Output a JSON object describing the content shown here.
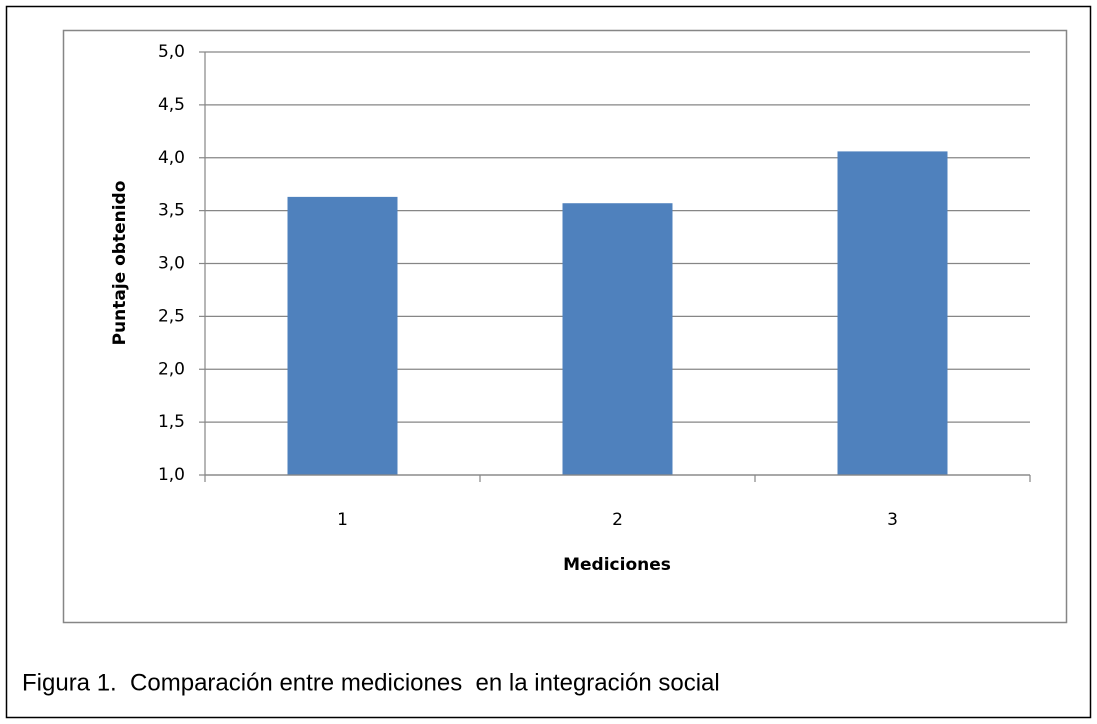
{
  "chart_data": {
    "type": "bar",
    "caption": "Figura 1.  Comparación entre mediciones  en la integración social",
    "xlabel": "Mediciones",
    "ylabel": "Puntaje obtenido",
    "categories": [
      "1",
      "2",
      "3"
    ],
    "values": [
      3.63,
      3.57,
      4.06
    ],
    "color": "#4f81bd",
    "ylim": [
      1.0,
      5.0
    ],
    "yticks": [
      {
        "value": 1.0,
        "label": "1,0"
      },
      {
        "value": 1.5,
        "label": "1,5"
      },
      {
        "value": 2.0,
        "label": "2,0"
      },
      {
        "value": 2.5,
        "label": "2,5"
      },
      {
        "value": 3.0,
        "label": "3,0"
      },
      {
        "value": 3.5,
        "label": "3,5"
      },
      {
        "value": 4.0,
        "label": "4,0"
      },
      {
        "value": 4.5,
        "label": "4,5"
      },
      {
        "value": 5.0,
        "label": "5,0"
      }
    ],
    "grid": true
  }
}
